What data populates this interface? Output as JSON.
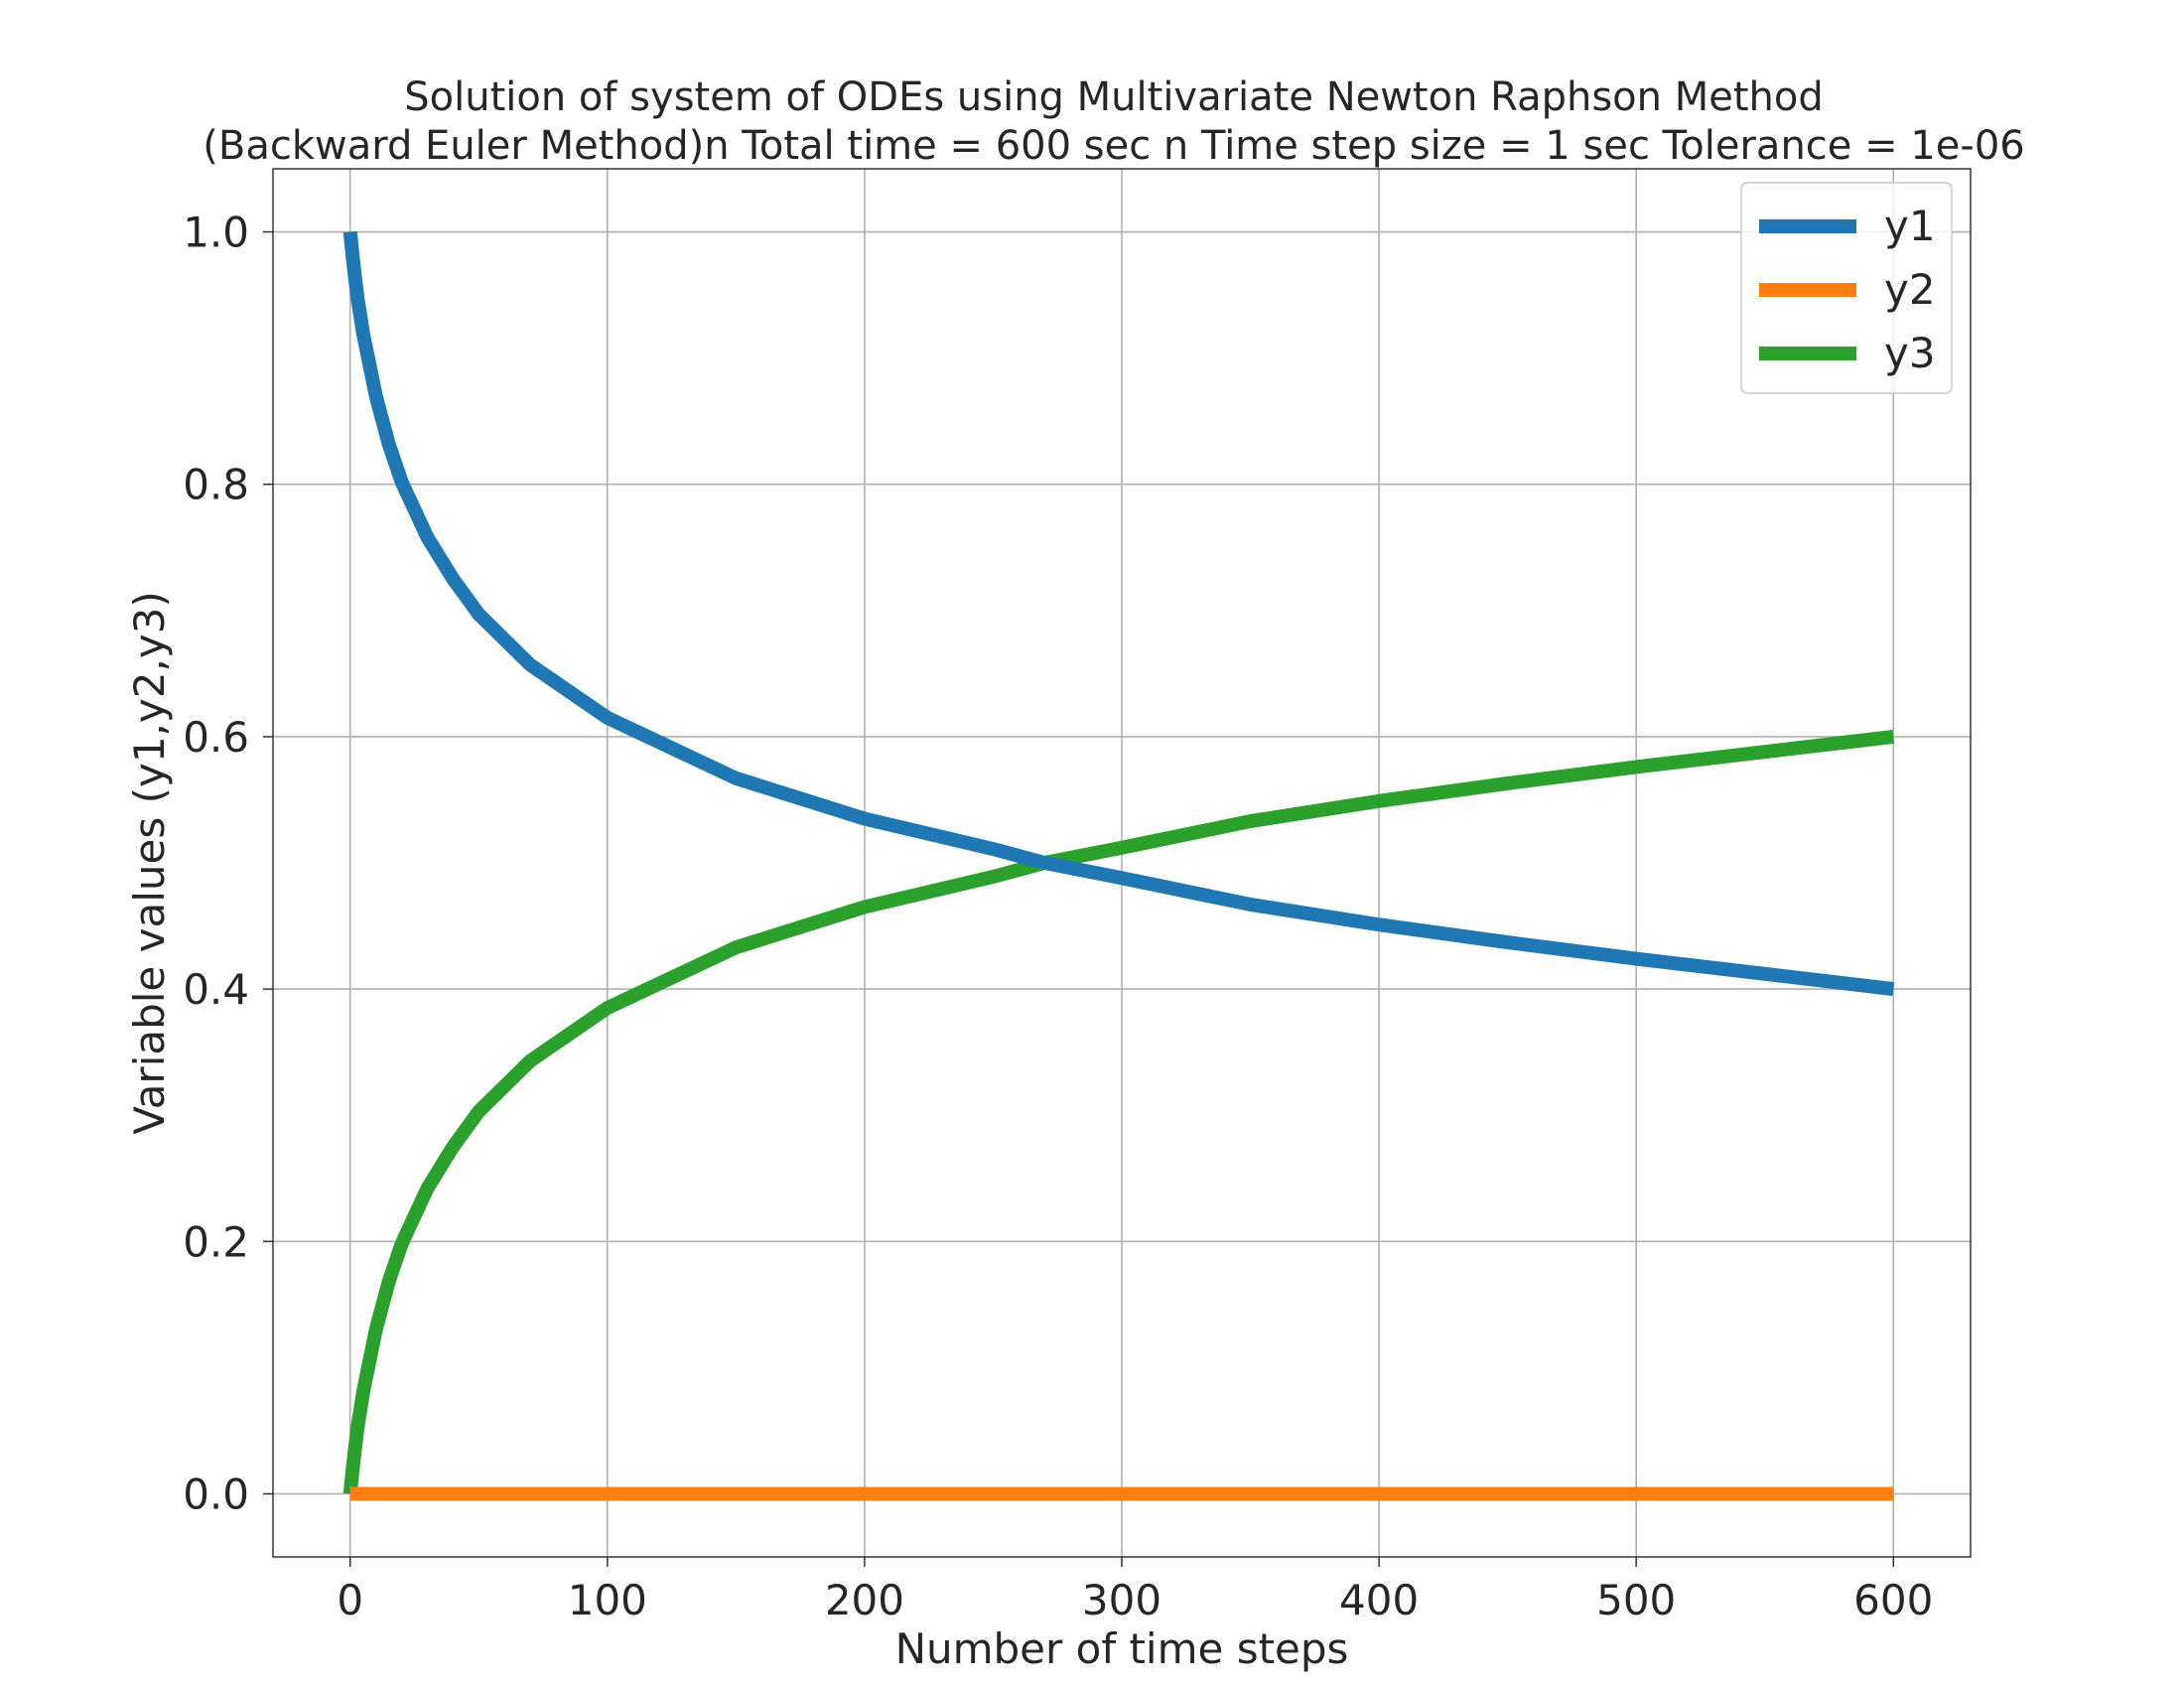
{
  "chart_data": {
    "type": "line",
    "title": "Solution of system of ODEs using Multivariate Newton Raphson Method",
    "subtitle": "(Backward Euler Method)n Total time = 600 sec n Time step size = 1 sec Tolerance = 1e-06",
    "xlabel": "Number of time steps",
    "ylabel": "Variable values (y1,y2,y3)",
    "xlim": [
      -30,
      630
    ],
    "ylim": [
      -0.05,
      1.05
    ],
    "x_ticks": [
      0,
      100,
      200,
      300,
      400,
      500,
      600
    ],
    "x_tick_labels": [
      "0",
      "100",
      "200",
      "300",
      "400",
      "500",
      "600"
    ],
    "y_ticks": [
      0.0,
      0.2,
      0.4,
      0.6,
      0.8,
      1.0
    ],
    "y_tick_labels": [
      "0.0",
      "0.2",
      "0.4",
      "0.6",
      "0.8",
      "1.0"
    ],
    "grid": true,
    "legend_position": "top-right",
    "series": [
      {
        "name": "y1",
        "color": "#1f77b4",
        "x": [
          0,
          1,
          2,
          3,
          5,
          10,
          15,
          20,
          30,
          40,
          50,
          70,
          100,
          150,
          200,
          250,
          270,
          300,
          350,
          400,
          450,
          500,
          550,
          600
        ],
        "values": [
          1.0,
          0.98,
          0.962,
          0.946,
          0.92,
          0.87,
          0.832,
          0.802,
          0.758,
          0.725,
          0.697,
          0.657,
          0.615,
          0.567,
          0.535,
          0.511,
          0.5,
          0.488,
          0.467,
          0.451,
          0.437,
          0.424,
          0.412,
          0.4
        ]
      },
      {
        "name": "y2",
        "color": "#ff7f0e",
        "x": [
          0,
          600
        ],
        "values": [
          0.0,
          0.0
        ]
      },
      {
        "name": "y3",
        "color": "#2ca02c",
        "x": [
          0,
          1,
          2,
          3,
          5,
          10,
          15,
          20,
          30,
          40,
          50,
          70,
          100,
          150,
          200,
          250,
          270,
          300,
          350,
          400,
          450,
          500,
          550,
          600
        ],
        "values": [
          0.0,
          0.02,
          0.038,
          0.054,
          0.08,
          0.13,
          0.168,
          0.198,
          0.242,
          0.275,
          0.303,
          0.343,
          0.385,
          0.433,
          0.465,
          0.489,
          0.5,
          0.512,
          0.533,
          0.549,
          0.563,
          0.576,
          0.588,
          0.6
        ]
      }
    ]
  }
}
